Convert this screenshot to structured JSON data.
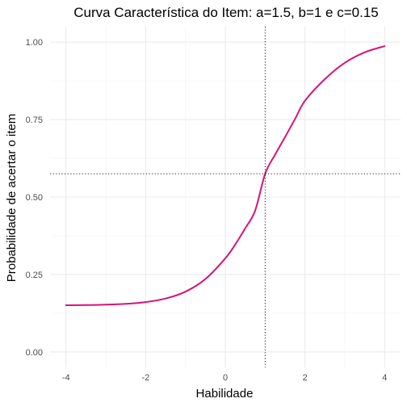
{
  "chart_data": {
    "type": "line",
    "title": "Curva Característica do Item: a=1.5, b=1 e c=0.15",
    "xlabel": "Habilidade",
    "ylabel": "Probabilidade de acertar o item",
    "xlim": [
      -4.4,
      4.4
    ],
    "ylim": [
      -0.05,
      1.05
    ],
    "xticks": [
      -4,
      -2,
      0,
      2,
      4
    ],
    "xtick_labels": [
      "-4",
      "-2",
      "0",
      "2",
      "4"
    ],
    "yticks": [
      0,
      0.25,
      0.5,
      0.75,
      1
    ],
    "ytick_labels": [
      "0.00",
      "0.25",
      "0.50",
      "0.75",
      "1.00"
    ],
    "x_minor_gridlines": [
      -3,
      -1,
      1,
      3
    ],
    "y_minor_gridlines": [
      0.125,
      0.375,
      0.625,
      0.875
    ],
    "grid": true,
    "series": [
      {
        "color": "#d4147a",
        "x": [
          -4.0,
          -3.5,
          -3.0,
          -2.5,
          -2.0,
          -1.5,
          -1.0,
          -0.5,
          0.0,
          0.25,
          0.5,
          0.75,
          1.0,
          1.25,
          1.5,
          1.75,
          2.0,
          2.5,
          3.0,
          3.5,
          4.0
        ],
        "y": [
          0.1506,
          0.1513,
          0.1526,
          0.1553,
          0.1609,
          0.1723,
          0.1945,
          0.2353,
          0.3021,
          0.347,
          0.3989,
          0.4564,
          0.575,
          0.6369,
          0.6936,
          0.7517,
          0.8105,
          0.8805,
          0.9332,
          0.967,
          0.987
        ]
      }
    ],
    "reference_lines": [
      {
        "orientation": "vertical",
        "value": 1,
        "style": "dotted",
        "color": "#000000"
      },
      {
        "orientation": "horizontal",
        "value": 0.575,
        "style": "dotted",
        "color": "#000000"
      }
    ]
  }
}
